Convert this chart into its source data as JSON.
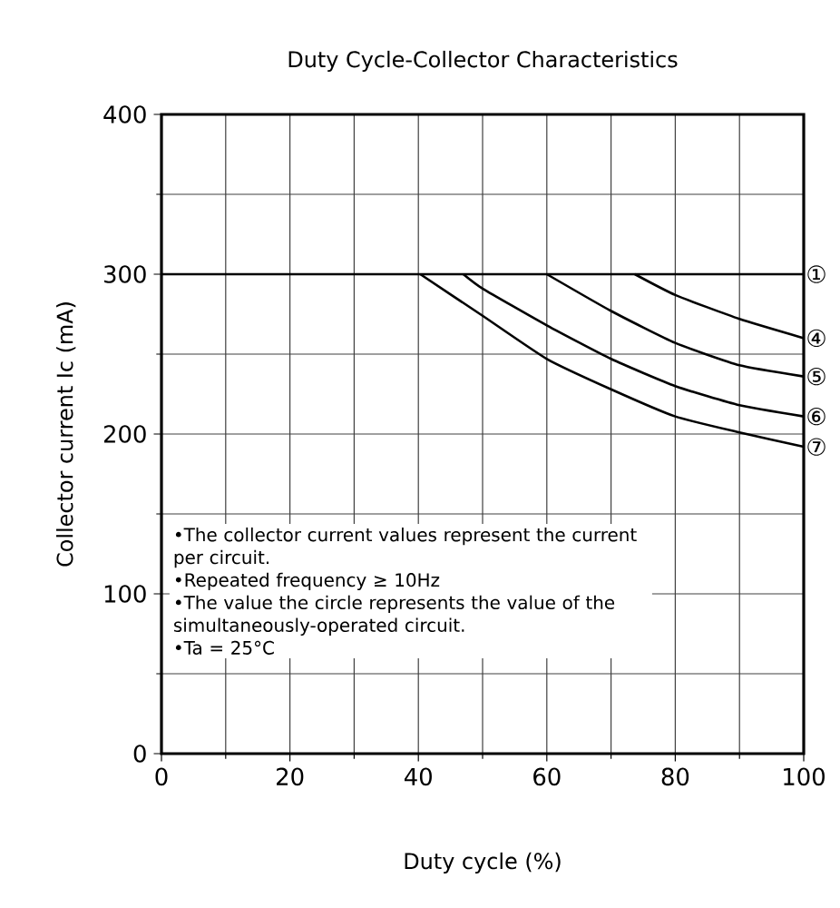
{
  "chart_data": {
    "type": "line",
    "title": "Duty Cycle-Collector Characteristics",
    "xlabel": "Duty cycle  (%)",
    "ylabel": "Collector current  Ic (mA)",
    "xlim": [
      0,
      100
    ],
    "ylim": [
      0,
      400
    ],
    "xticks": [
      0,
      20,
      40,
      60,
      80,
      100
    ],
    "yticks": [
      0,
      100,
      200,
      300,
      400
    ],
    "grid": true,
    "legend": false,
    "marker": "none",
    "line_style": "solid",
    "series": [
      {
        "name": "①",
        "color": "#000000",
        "x": [
          0,
          100
        ],
        "values": [
          300,
          300
        ]
      },
      {
        "name": "④",
        "color": "#000000",
        "x": [
          73.7,
          80,
          90,
          100
        ],
        "values": [
          300,
          287,
          272,
          260
        ]
      },
      {
        "name": "⑤",
        "color": "#000000",
        "x": [
          60,
          70,
          80,
          90,
          100
        ],
        "values": [
          300,
          277,
          257,
          243,
          236
        ]
      },
      {
        "name": "⑥",
        "color": "#000000",
        "x": [
          47,
          50,
          60,
          70,
          80,
          90,
          100
        ],
        "values": [
          300,
          291,
          268,
          247,
          230,
          218,
          211
        ]
      },
      {
        "name": "⑦",
        "color": "#000000",
        "x": [
          40.3,
          50,
          60,
          70,
          80,
          90,
          100
        ],
        "values": [
          300,
          274,
          247,
          228,
          211,
          201,
          192
        ]
      }
    ],
    "annotations": [
      "•The collector current values represent the current per circuit.",
      "•Repeated frequency  ≥ 10Hz",
      "•The value the circle represents the value of the simultaneously-operated circuit.",
      "•Ta = 25°C"
    ]
  }
}
